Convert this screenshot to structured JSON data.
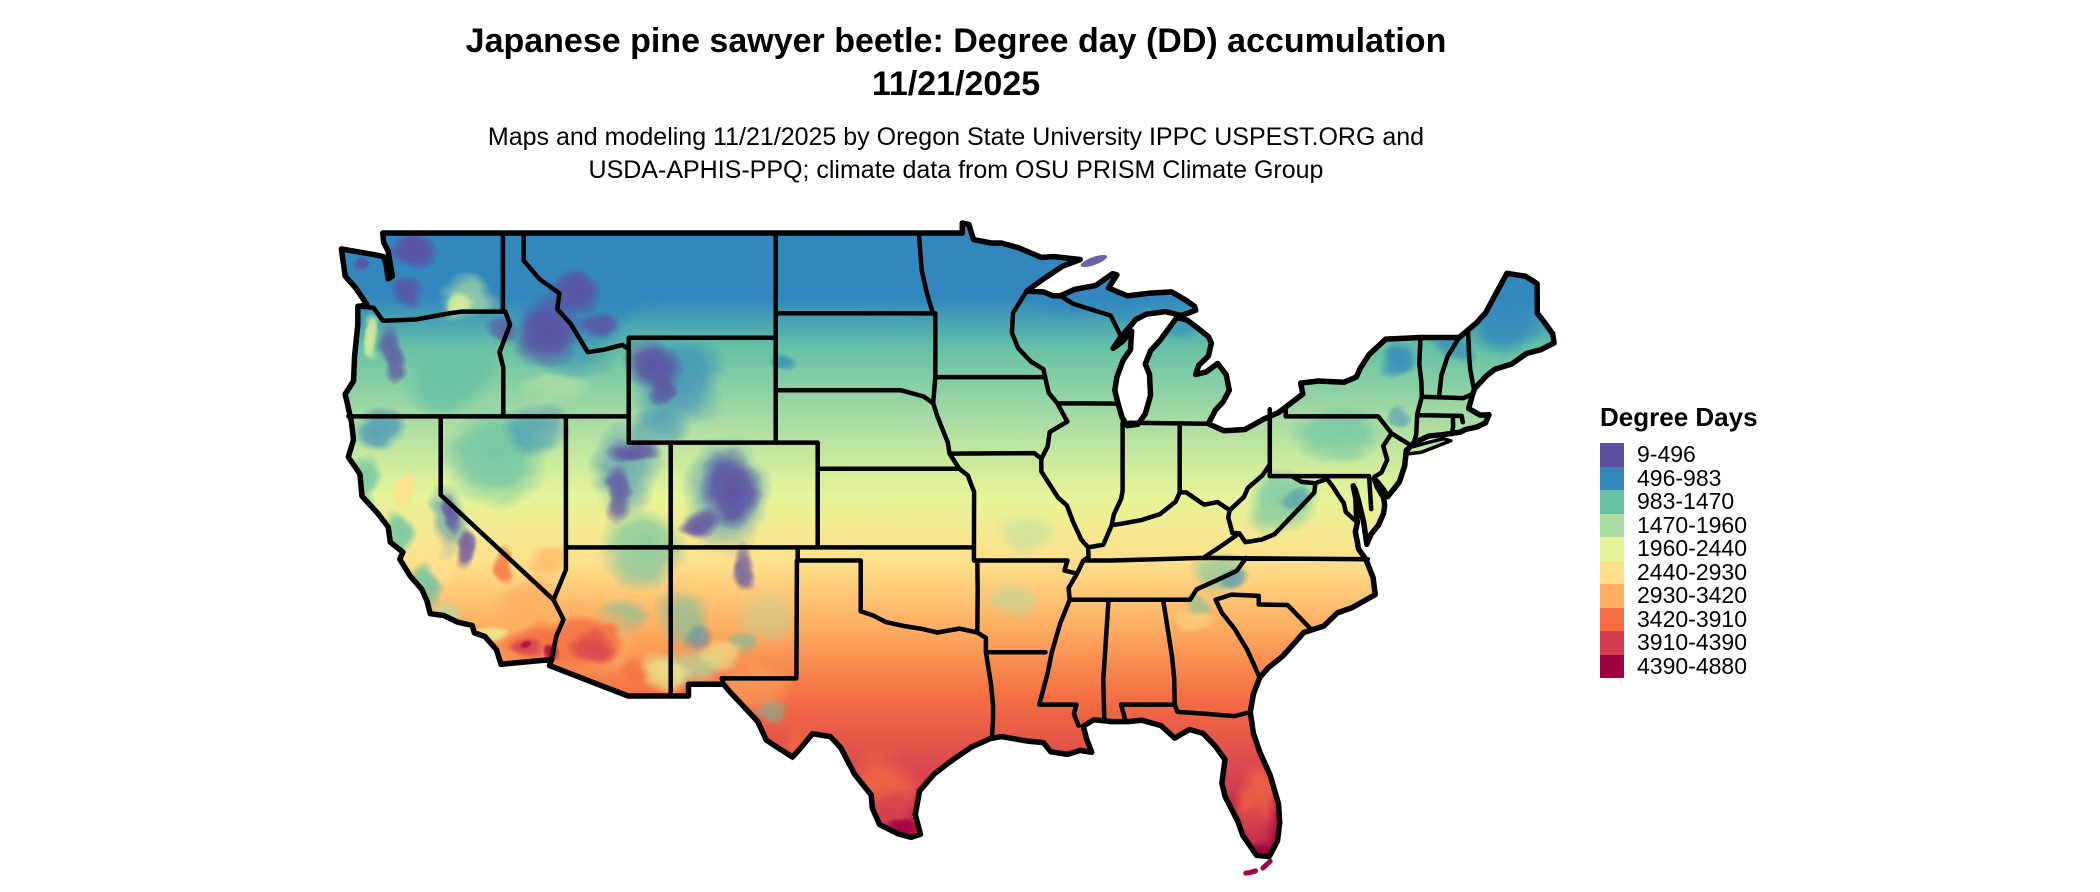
{
  "header": {
    "title_line1": "Japanese pine sawyer beetle: Degree day (DD) accumulation",
    "title_line2": "11/21/2025",
    "subtitle_line1": "Maps and modeling 11/21/2025 by Oregon State University IPPC USPEST.ORG and",
    "subtitle_line2": "USDA-APHIS-PPQ; climate data from OSU PRISM Climate Group"
  },
  "legend": {
    "title": "Degree Days",
    "items": [
      {
        "label": "9-496",
        "color": "#5E4FA2"
      },
      {
        "label": "496-983",
        "color": "#3288BD"
      },
      {
        "label": "983-1470",
        "color": "#66C2A5"
      },
      {
        "label": "1470-1960",
        "color": "#ABDDA4"
      },
      {
        "label": "1960-2440",
        "color": "#E6F598"
      },
      {
        "label": "2440-2930",
        "color": "#FEE08B"
      },
      {
        "label": "2930-3420",
        "color": "#FDAE61"
      },
      {
        "label": "3420-3910",
        "color": "#F46D43"
      },
      {
        "label": "3910-4390",
        "color": "#D53E4F"
      },
      {
        "label": "4390-4880",
        "color": "#9E0142"
      }
    ]
  },
  "map": {
    "region": "Contiguous United States",
    "kind": "degree-day accumulation choropleth",
    "gradient_north_to_south": [
      "#3288BD",
      "#66C2A5",
      "#ABDDA4",
      "#E6F598",
      "#FEE08B",
      "#FDAE61",
      "#F46D43",
      "#D53E4F",
      "#9E0142"
    ],
    "cool_mountain_color": "#5E4FA2",
    "hot_extreme_color": "#9E0142"
  }
}
